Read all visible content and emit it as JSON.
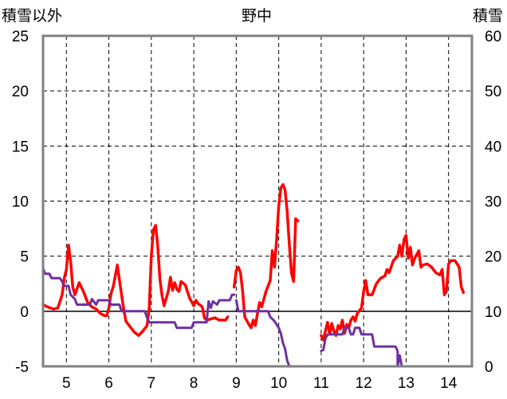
{
  "chart_data": {
    "type": "line",
    "title": "野中",
    "ylabel_left": "積雪以外",
    "ylabel_right": "積雪",
    "x_ticks": [
      "5",
      "6",
      "7",
      "8",
      "9",
      "10",
      "11",
      "12",
      "13",
      "14"
    ],
    "xlim": [
      4.45,
      14.55
    ],
    "ylim_left": [
      -5,
      25
    ],
    "yticks_left": [
      "-5",
      "0",
      "5",
      "10",
      "15",
      "20",
      "25"
    ],
    "ylim_right": [
      0,
      60
    ],
    "yticks_right": [
      "0",
      "10",
      "20",
      "30",
      "40",
      "50",
      "60"
    ],
    "grid": true,
    "colors": {
      "red": "#ff0000",
      "purple": "#7030a0",
      "grid": "#000000",
      "frame": "#808080"
    },
    "series": [
      {
        "axis": "left",
        "color": "#ff0000",
        "segments": [
          [
            [
              4.45,
              0.6
            ],
            [
              4.55,
              0.4
            ],
            [
              4.7,
              0.2
            ],
            [
              4.8,
              0.3
            ],
            [
              4.9,
              1.5
            ],
            [
              4.95,
              3.0
            ],
            [
              5.0,
              3.8
            ],
            [
              5.05,
              6.0
            ],
            [
              5.1,
              4.5
            ],
            [
              5.15,
              2.2
            ],
            [
              5.2,
              1.5
            ],
            [
              5.3,
              2.6
            ],
            [
              5.4,
              1.8
            ],
            [
              5.5,
              0.8
            ],
            [
              5.6,
              0.4
            ],
            [
              5.7,
              0.2
            ],
            [
              5.8,
              -0.2
            ],
            [
              5.9,
              -0.4
            ],
            [
              5.95,
              -0.4
            ],
            [
              6.0,
              0.3
            ],
            [
              6.05,
              1.6
            ],
            [
              6.1,
              2.2
            ],
            [
              6.15,
              3.2
            ],
            [
              6.2,
              4.2
            ],
            [
              6.25,
              2.8
            ],
            [
              6.3,
              1.5
            ],
            [
              6.35,
              0.2
            ],
            [
              6.4,
              -0.9
            ],
            [
              6.5,
              -1.4
            ],
            [
              6.6,
              -1.9
            ],
            [
              6.7,
              -2.2
            ],
            [
              6.8,
              -1.8
            ],
            [
              6.9,
              -1.3
            ],
            [
              6.95,
              0.3
            ],
            [
              7.0,
              5.0
            ],
            [
              7.05,
              7.4
            ],
            [
              7.1,
              7.8
            ],
            [
              7.15,
              6.0
            ],
            [
              7.2,
              3.0
            ],
            [
              7.25,
              1.5
            ],
            [
              7.3,
              0.5
            ],
            [
              7.4,
              1.8
            ],
            [
              7.45,
              3.1
            ],
            [
              7.5,
              1.9
            ],
            [
              7.55,
              2.6
            ],
            [
              7.6,
              2.0
            ],
            [
              7.65,
              1.8
            ],
            [
              7.7,
              2.7
            ],
            [
              7.8,
              2.4
            ],
            [
              7.9,
              1.2
            ],
            [
              8.0,
              0.5
            ],
            [
              8.05,
              1.0
            ],
            [
              8.1,
              0.7
            ],
            [
              8.2,
              0.4
            ],
            [
              8.25,
              -0.6
            ],
            [
              8.3,
              -0.8
            ],
            [
              8.4,
              -0.7
            ],
            [
              8.5,
              -0.6
            ],
            [
              8.6,
              -0.8
            ],
            [
              8.75,
              -0.8
            ],
            [
              8.8,
              -0.5
            ]
          ],
          [
            [
              8.95,
              2.2
            ],
            [
              9.0,
              3.7
            ],
            [
              9.05,
              4.0
            ],
            [
              9.1,
              3.5
            ],
            [
              9.15,
              1.8
            ],
            [
              9.2,
              -0.5
            ],
            [
              9.3,
              -1.2
            ],
            [
              9.35,
              -1.5
            ],
            [
              9.4,
              -0.8
            ],
            [
              9.45,
              -1.3
            ],
            [
              9.5,
              -0.2
            ],
            [
              9.55,
              0.8
            ],
            [
              9.6,
              0.4
            ],
            [
              9.7,
              1.8
            ],
            [
              9.8,
              2.8
            ],
            [
              9.85,
              5.5
            ],
            [
              9.9,
              4.0
            ],
            [
              9.95,
              6.5
            ],
            [
              10.0,
              9.5
            ],
            [
              10.05,
              11.2
            ],
            [
              10.1,
              11.5
            ],
            [
              10.15,
              11.0
            ],
            [
              10.2,
              9.0
            ],
            [
              10.25,
              6.0
            ],
            [
              10.3,
              3.5
            ],
            [
              10.35,
              2.7
            ],
            [
              10.4,
              8.4
            ],
            [
              10.45,
              8.2
            ]
          ],
          [
            [
              11.0,
              -2.2
            ],
            [
              11.05,
              -2.6
            ],
            [
              11.1,
              -1.8
            ],
            [
              11.15,
              -1.0
            ],
            [
              11.2,
              -2.1
            ],
            [
              11.25,
              -1.1
            ],
            [
              11.3,
              -1.8
            ],
            [
              11.35,
              -2.2
            ],
            [
              11.4,
              -1.3
            ],
            [
              11.45,
              -1.6
            ],
            [
              11.5,
              -0.8
            ],
            [
              11.55,
              -2.0
            ],
            [
              11.6,
              -1.2
            ],
            [
              11.65,
              -1.5
            ],
            [
              11.7,
              -0.8
            ],
            [
              11.75,
              -0.5
            ],
            [
              11.8,
              -0.9
            ],
            [
              11.85,
              -0.2
            ],
            [
              11.95,
              0.3
            ],
            [
              12.0,
              1.8
            ],
            [
              12.05,
              2.8
            ],
            [
              12.1,
              1.5
            ],
            [
              12.2,
              1.5
            ],
            [
              12.3,
              2.5
            ],
            [
              12.4,
              3.0
            ],
            [
              12.5,
              3.2
            ],
            [
              12.55,
              3.8
            ],
            [
              12.6,
              3.5
            ],
            [
              12.7,
              4.6
            ],
            [
              12.8,
              5.0
            ],
            [
              12.85,
              6.0
            ],
            [
              12.9,
              5.0
            ],
            [
              12.95,
              6.5
            ],
            [
              13.0,
              6.9
            ],
            [
              13.05,
              4.8
            ],
            [
              13.1,
              5.8
            ],
            [
              13.15,
              4.2
            ],
            [
              13.2,
              4.8
            ],
            [
              13.3,
              5.5
            ],
            [
              13.35,
              4.0
            ],
            [
              13.4,
              4.2
            ],
            [
              13.5,
              4.3
            ],
            [
              13.6,
              4.0
            ],
            [
              13.7,
              3.5
            ],
            [
              13.8,
              3.3
            ],
            [
              13.85,
              3.8
            ],
            [
              13.9,
              1.5
            ],
            [
              13.95,
              1.8
            ],
            [
              14.0,
              4.3
            ],
            [
              14.05,
              4.6
            ],
            [
              14.15,
              4.6
            ],
            [
              14.25,
              4.0
            ],
            [
              14.3,
              2.2
            ],
            [
              14.35,
              1.7
            ]
          ]
        ]
      },
      {
        "axis": "left",
        "color": "#7030a0",
        "segments": [
          [
            [
              4.45,
              3.9
            ],
            [
              4.5,
              3.4
            ],
            [
              4.6,
              3.4
            ],
            [
              4.65,
              3.0
            ],
            [
              4.85,
              3.0
            ],
            [
              4.9,
              2.7
            ],
            [
              4.95,
              2.3
            ],
            [
              5.05,
              2.3
            ],
            [
              5.1,
              1.5
            ],
            [
              5.2,
              1.1
            ],
            [
              5.25,
              0.6
            ],
            [
              5.55,
              0.6
            ],
            [
              5.6,
              1.1
            ],
            [
              5.7,
              0.6
            ],
            [
              5.75,
              1.0
            ],
            [
              6.0,
              1.0
            ],
            [
              6.05,
              0.6
            ],
            [
              6.25,
              0.6
            ],
            [
              6.3,
              0.0
            ],
            [
              6.85,
              0.0
            ],
            [
              6.9,
              -0.6
            ],
            [
              6.95,
              -1.0
            ],
            [
              7.55,
              -1.0
            ],
            [
              7.6,
              -1.5
            ],
            [
              7.95,
              -1.5
            ],
            [
              8.0,
              -1.0
            ],
            [
              8.3,
              -1.0
            ],
            [
              8.35,
              0.9
            ],
            [
              8.4,
              0.3
            ],
            [
              8.45,
              0.9
            ],
            [
              8.55,
              0.6
            ],
            [
              8.6,
              1.0
            ],
            [
              8.85,
              1.0
            ],
            [
              8.9,
              1.5
            ],
            [
              8.95,
              1.5
            ]
          ],
          [
            [
              9.0,
              1.0
            ],
            [
              9.05,
              0.0
            ],
            [
              9.75,
              0.0
            ],
            [
              9.8,
              -0.5
            ],
            [
              9.9,
              -0.9
            ],
            [
              10.0,
              -1.5
            ],
            [
              10.05,
              -2.0
            ],
            [
              10.1,
              -2.9
            ],
            [
              10.15,
              -3.4
            ],
            [
              10.2,
              -4.5
            ],
            [
              10.25,
              -5.0
            ],
            [
              10.5,
              -5.0
            ]
          ],
          [
            [
              11.0,
              -3.6
            ],
            [
              11.05,
              -3.5
            ],
            [
              11.1,
              -2.5
            ],
            [
              11.15,
              -2.1
            ],
            [
              11.5,
              -2.1
            ],
            [
              11.55,
              -1.5
            ],
            [
              11.65,
              -1.5
            ],
            [
              11.7,
              -2.1
            ],
            [
              11.75,
              -2.1
            ],
            [
              11.8,
              -1.5
            ],
            [
              11.9,
              -1.5
            ],
            [
              11.95,
              -2.1
            ],
            [
              12.2,
              -2.1
            ],
            [
              12.25,
              -3.2
            ],
            [
              12.75,
              -3.2
            ],
            [
              12.8,
              -3.6
            ],
            [
              12.8,
              -5.0
            ],
            [
              12.85,
              -4.0
            ],
            [
              12.9,
              -5.0
            ],
            [
              14.5,
              -5.0
            ]
          ]
        ]
      }
    ]
  }
}
